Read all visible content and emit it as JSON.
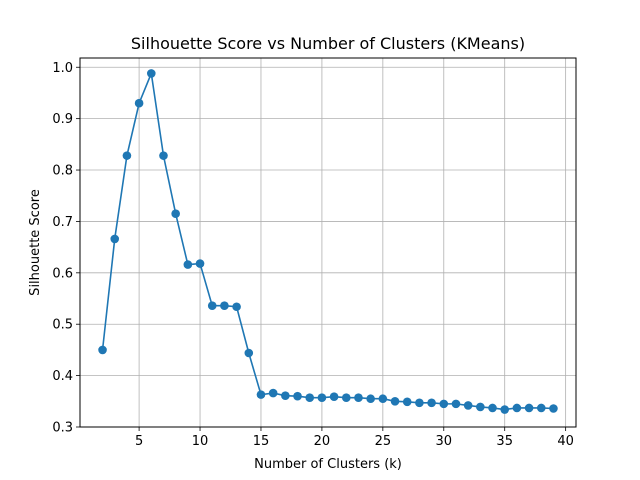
{
  "chart_data": {
    "type": "line",
    "title": "Silhouette Score vs Number of Clusters (KMeans)",
    "xlabel": "Number of Clusters (k)",
    "ylabel": "Silhouette Score",
    "xlim": [
      0.15,
      40.85
    ],
    "ylim": [
      0.3,
      1.018
    ],
    "xticks": [
      5,
      10,
      15,
      20,
      25,
      30,
      35,
      40
    ],
    "yticks": [
      0.3,
      0.4,
      0.5,
      0.6,
      0.7,
      0.8,
      0.9,
      1.0
    ],
    "grid": true,
    "line_color": "#1f77b4",
    "marker": "circle",
    "series": [
      {
        "x": [
          2,
          3,
          4,
          5,
          6,
          7,
          8,
          9,
          10,
          11,
          12,
          13,
          14,
          15,
          16,
          17,
          18,
          19,
          20,
          21,
          22,
          23,
          24,
          25,
          26,
          27,
          28,
          29,
          30,
          31,
          32,
          33,
          34,
          35,
          36,
          37,
          38,
          39
        ],
        "values": [
          0.45,
          0.666,
          0.828,
          0.93,
          0.988,
          0.828,
          0.715,
          0.616,
          0.618,
          0.536,
          0.536,
          0.534,
          0.444,
          0.363,
          0.366,
          0.361,
          0.36,
          0.357,
          0.357,
          0.359,
          0.357,
          0.357,
          0.355,
          0.355,
          0.35,
          0.349,
          0.347,
          0.347,
          0.345,
          0.345,
          0.342,
          0.339,
          0.337,
          0.334,
          0.337,
          0.337,
          0.337,
          0.336
        ]
      }
    ]
  }
}
